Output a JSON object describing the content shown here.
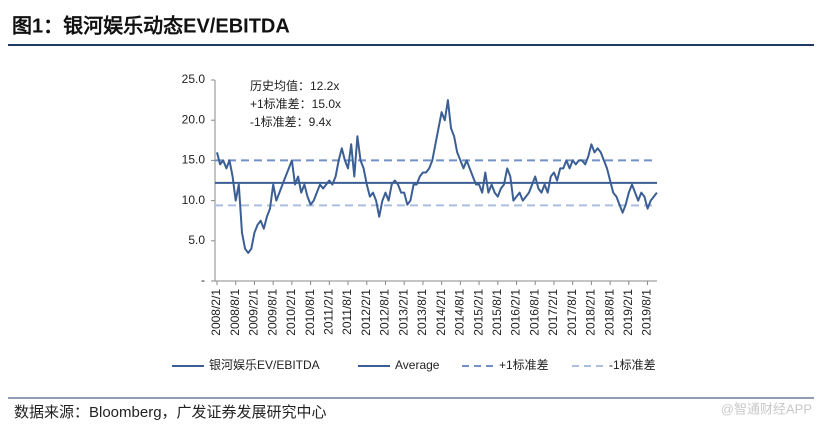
{
  "chart_data": {
    "type": "line",
    "title": "图1：银河娱乐动态EV/EBITDA",
    "source": "数据来源：Bloomberg，广发证券发展研究中心",
    "watermark": "@智通财经APP",
    "annotations": [
      "历史均值：12.2x",
      "+1标准差：15.0x",
      "-1标准差：9.4x"
    ],
    "x": [
      "2008/2/1",
      "2008/3/1",
      "2008/4/1",
      "2008/5/1",
      "2008/6/1",
      "2008/7/1",
      "2008/8/1",
      "2008/9/1",
      "2008/10/1",
      "2008/11/1",
      "2008/12/1",
      "2009/1/1",
      "2009/2/1",
      "2009/3/1",
      "2009/4/1",
      "2009/5/1",
      "2009/6/1",
      "2009/7/1",
      "2009/8/1",
      "2009/9/1",
      "2009/10/1",
      "2009/11/1",
      "2009/12/1",
      "2010/1/1",
      "2010/2/1",
      "2010/3/1",
      "2010/4/1",
      "2010/5/1",
      "2010/6/1",
      "2010/7/1",
      "2010/8/1",
      "2010/9/1",
      "2010/10/1",
      "2010/11/1",
      "2010/12/1",
      "2011/1/1",
      "2011/2/1",
      "2011/3/1",
      "2011/4/1",
      "2011/5/1",
      "2011/6/1",
      "2011/7/1",
      "2011/8/1",
      "2011/9/1",
      "2011/10/1",
      "2011/11/1",
      "2011/12/1",
      "2012/1/1",
      "2012/2/1",
      "2012/3/1",
      "2012/4/1",
      "2012/5/1",
      "2012/6/1",
      "2012/7/1",
      "2012/8/1",
      "2012/9/1",
      "2012/10/1",
      "2012/11/1",
      "2012/12/1",
      "2013/1/1",
      "2013/2/1",
      "2013/3/1",
      "2013/4/1",
      "2013/5/1",
      "2013/6/1",
      "2013/7/1",
      "2013/8/1",
      "2013/9/1",
      "2013/10/1",
      "2013/11/1",
      "2013/12/1",
      "2014/1/1",
      "2014/2/1",
      "2014/3/1",
      "2014/4/1",
      "2014/5/1",
      "2014/6/1",
      "2014/7/1",
      "2014/8/1",
      "2014/9/1",
      "2014/10/1",
      "2014/11/1",
      "2014/12/1",
      "2015/1/1",
      "2015/2/1",
      "2015/3/1",
      "2015/4/1",
      "2015/5/1",
      "2015/6/1",
      "2015/7/1",
      "2015/8/1",
      "2015/9/1",
      "2015/10/1",
      "2015/11/1",
      "2015/12/1",
      "2016/1/1",
      "2016/2/1",
      "2016/3/1",
      "2016/4/1",
      "2016/5/1",
      "2016/6/1",
      "2016/7/1",
      "2016/8/1",
      "2016/9/1",
      "2016/10/1",
      "2016/11/1",
      "2016/12/1",
      "2017/1/1",
      "2017/2/1",
      "2017/3/1",
      "2017/4/1",
      "2017/5/1",
      "2017/6/1",
      "2017/7/1",
      "2017/8/1",
      "2017/9/1",
      "2017/10/1",
      "2017/11/1",
      "2017/12/1",
      "2018/1/1",
      "2018/2/1",
      "2018/3/1",
      "2018/4/1",
      "2018/5/1",
      "2018/6/1",
      "2018/7/1",
      "2018/8/1",
      "2018/9/1",
      "2018/10/1",
      "2018/11/1",
      "2018/12/1",
      "2019/1/1",
      "2019/2/1",
      "2019/3/1",
      "2019/4/1",
      "2019/5/1",
      "2019/6/1",
      "2019/7/1",
      "2019/8/1",
      "2019/9/1",
      "2019/10/1",
      "2019/11/1"
    ],
    "series": [
      {
        "name": "银河娱乐EV/EBITDA",
        "color": "#3b5f95",
        "values": [
          16,
          14.5,
          15,
          14,
          15,
          13,
          10,
          12,
          6,
          4,
          3.5,
          4,
          6,
          7,
          7.5,
          6.5,
          8,
          9,
          12,
          10,
          11,
          12,
          13,
          14,
          15,
          12,
          13,
          11,
          12,
          10.5,
          9.5,
          10,
          11,
          12,
          11.5,
          12,
          12.5,
          12,
          13,
          15,
          16.5,
          15,
          14,
          17,
          13,
          18,
          15,
          14,
          12,
          10.5,
          11,
          10,
          8,
          10,
          11,
          10,
          12,
          12.5,
          12,
          11,
          11,
          9.5,
          10,
          12,
          12,
          13,
          13.5,
          13.5,
          14,
          15,
          17,
          19,
          21,
          20,
          22.5,
          19,
          18,
          16,
          15,
          14,
          15,
          14,
          13,
          12,
          12,
          11,
          13.5,
          11,
          12,
          11,
          10.5,
          11.5,
          12,
          14,
          13,
          10,
          10.5,
          11,
          10,
          10.5,
          11,
          12,
          13,
          11.5,
          11,
          12,
          11,
          13,
          13.5,
          12.5,
          14,
          14,
          15,
          14,
          15,
          14.5,
          15,
          15,
          14.5,
          15.5,
          17,
          16,
          16.5,
          16,
          15,
          14,
          12.5,
          11,
          10.5,
          9.5,
          8.5,
          9.5,
          11,
          12,
          11,
          10,
          11,
          10.5,
          9,
          10,
          10.5,
          11
        ]
      }
    ],
    "reference_lines": [
      {
        "name": "Average",
        "value": 12.2,
        "color": "#3b5f95",
        "dash": false
      },
      {
        "name": "+1标准差",
        "value": 15.0,
        "color": "#7391c6",
        "dash": true
      },
      {
        "name": "-1标准差",
        "value": 9.4,
        "color": "#aabfe0",
        "dash": true
      }
    ],
    "xticks": [
      "2008/2/1",
      "2008/8/1",
      "2009/2/1",
      "2009/8/1",
      "2010/2/1",
      "2010/8/1",
      "2011/2/1",
      "2011/8/1",
      "2012/2/1",
      "2012/8/1",
      "2013/2/1",
      "2013/8/1",
      "2014/2/1",
      "2014/8/1",
      "2015/2/1",
      "2015/8/1",
      "2016/2/1",
      "2016/8/1",
      "2017/2/1",
      "2017/8/1",
      "2018/2/1",
      "2018/8/1",
      "2019/2/1",
      "2019/8/1"
    ],
    "ylim": [
      0,
      25
    ],
    "yticks": [
      {
        "value": 0,
        "label": "-"
      },
      {
        "value": 5,
        "label": "5.0"
      },
      {
        "value": 10,
        "label": "10.0"
      },
      {
        "value": 15,
        "label": "15.0"
      },
      {
        "value": 20,
        "label": "20.0"
      },
      {
        "value": 25,
        "label": "25.0"
      }
    ]
  }
}
